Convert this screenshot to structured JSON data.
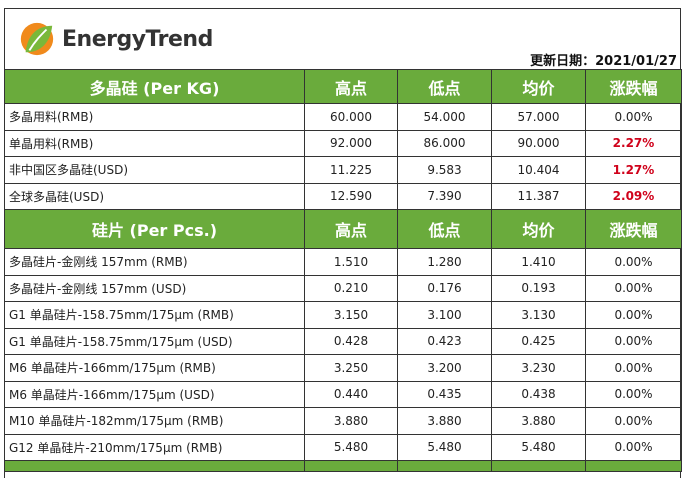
{
  "brand": "EnergyTrend",
  "update_date": "更新日期：2021/01/27",
  "columns": [
    "高点",
    "低点",
    "均价",
    "涨跌幅"
  ],
  "accent": "#6aab3c",
  "up_color": "#d0021b",
  "sections": [
    {
      "title": "多晶硅 (Per KG)",
      "rows": [
        [
          "多晶用料(RMB)",
          "60.000",
          "54.000",
          "57.000",
          "0.00%"
        ],
        [
          "单晶用料(RMB)",
          "92.000",
          "86.000",
          "90.000",
          "2.27%"
        ],
        [
          "非中国区多晶硅(USD)",
          "11.225",
          "9.583",
          "10.404",
          "1.27%"
        ],
        [
          "全球多晶硅(USD)",
          "12.590",
          "7.390",
          "11.387",
          "2.09%"
        ]
      ]
    },
    {
      "title": "硅片 (Per Pcs.)",
      "rows": [
        [
          "多晶硅片-金刚线 157mm (RMB)",
          "1.510",
          "1.280",
          "1.410",
          "0.00%"
        ],
        [
          "多晶硅片-金刚线 157mm (USD)",
          "0.210",
          "0.176",
          "0.193",
          "0.00%"
        ],
        [
          "G1 单晶硅片-158.75mm/175μm (RMB)",
          "3.150",
          "3.100",
          "3.130",
          "0.00%"
        ],
        [
          "G1 单晶硅片-158.75mm/175μm (USD)",
          "0.428",
          "0.423",
          "0.425",
          "0.00%"
        ],
        [
          "M6 单晶硅片-166mm/175μm (RMB)",
          "3.250",
          "3.200",
          "3.230",
          "0.00%"
        ],
        [
          "M6 单晶硅片-166mm/175μm (USD)",
          "0.440",
          "0.435",
          "0.438",
          "0.00%"
        ],
        [
          "M10 单晶硅片-182mm/175μm (RMB)",
          "3.880",
          "3.880",
          "3.880",
          "0.00%"
        ],
        [
          "G12 单晶硅片-210mm/175μm  (RMB)",
          "5.480",
          "5.480",
          "5.480",
          "0.00%"
        ]
      ]
    }
  ]
}
